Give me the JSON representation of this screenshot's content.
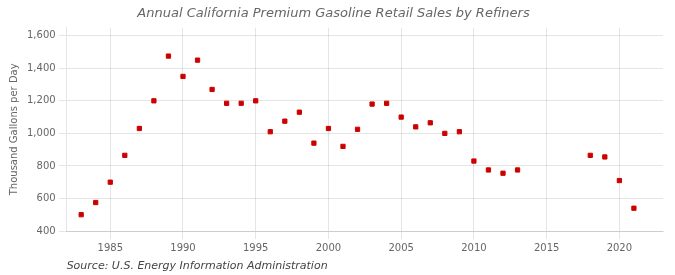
{
  "chart_data": {
    "type": "scatter",
    "title": "Annual California Premium Gasoline Retail Sales by Refiners",
    "ylabel": "Thousand Gallons per Day",
    "source": "Source: U.S. Energy Information Administration",
    "x": [
      1983,
      1984,
      1985,
      1986,
      1987,
      1988,
      1989,
      1990,
      1991,
      1992,
      1993,
      1994,
      1995,
      1996,
      1997,
      1998,
      1999,
      2000,
      2001,
      2002,
      2003,
      2004,
      2005,
      2006,
      2007,
      2008,
      2009,
      2010,
      2011,
      2012,
      2013,
      2018,
      2019,
      2020,
      2021,
      2022
    ],
    "values": [
      500,
      575,
      700,
      865,
      1030,
      1200,
      1475,
      1350,
      1450,
      1270,
      1185,
      1185,
      1200,
      1010,
      1075,
      1130,
      940,
      1030,
      920,
      1025,
      1180,
      1185,
      1100,
      1040,
      1065,
      1000,
      1010,
      830,
      775,
      755,
      775,
      865,
      855,
      710,
      540,
      null
    ],
    "color": "#cc0000",
    "marker": "square",
    "xlim": [
      1982,
      2023
    ],
    "ylim": [
      400,
      1650
    ],
    "xticks": [
      1985,
      1990,
      1995,
      2000,
      2005,
      2010,
      2015,
      2020
    ],
    "yticks": [
      400,
      600,
      800,
      {
        "value": 1000,
        "label": "1,000"
      },
      {
        "value": 1200,
        "label": "1,200"
      },
      {
        "value": 1400,
        "label": "1,400"
      },
      {
        "value": 1600,
        "label": "1,600"
      }
    ],
    "grid": true
  }
}
